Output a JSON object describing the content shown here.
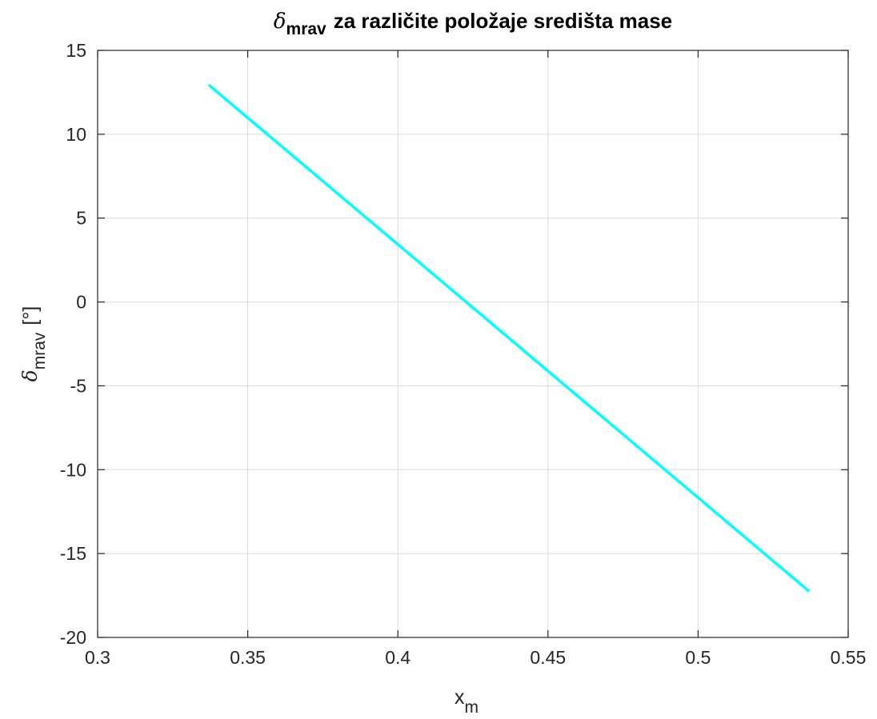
{
  "chart_data": {
    "type": "line",
    "title": {
      "symbol": "δ",
      "subscript": "mrav",
      "text": "za različite položaje središta mase"
    },
    "xlabel": {
      "main": "x",
      "subscript": "m"
    },
    "ylabel": {
      "symbol": "δ",
      "subscript": "mrav",
      "unit": "[°]"
    },
    "xlim": [
      0.3,
      0.55
    ],
    "ylim": [
      -20,
      15
    ],
    "xticks": [
      0.3,
      0.35,
      0.4,
      0.45,
      0.5,
      0.55
    ],
    "xtick_labels": [
      "0.3",
      "0.35",
      "0.4",
      "0.45",
      "0.5",
      "0.55"
    ],
    "yticks": [
      -20,
      -15,
      -10,
      -5,
      0,
      5,
      10,
      15
    ],
    "ytick_labels": [
      "-20",
      "-15",
      "-10",
      "-5",
      "0",
      "5",
      "10",
      "15"
    ],
    "grid": true,
    "box": true,
    "series": [
      {
        "color": "#00ffff",
        "x": [
          0.337,
          0.537
        ],
        "y": [
          12.95,
          -17.25
        ]
      }
    ]
  }
}
